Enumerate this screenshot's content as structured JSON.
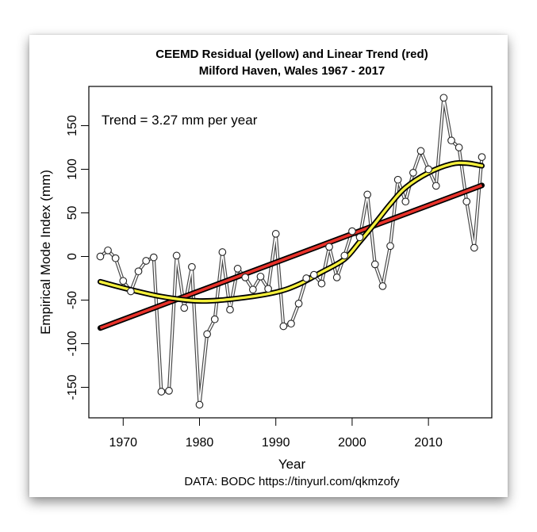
{
  "chart_data": {
    "type": "line",
    "title": "CEEMD Residual (yellow) and Linear Trend (red)",
    "subtitle": "Milford Haven, Wales 1967 - 2017",
    "xlabel": "Year",
    "ylabel": "Empirical Mode Index (mm)",
    "source_note": "DATA: BODC https://tinyurl.com/qkmzofy",
    "annotation": "Trend = 3.27 mm per year",
    "xlim": [
      1965.5,
      2018.3
    ],
    "ylim": [
      -185,
      195
    ],
    "x_ticks": [
      1970,
      1980,
      1990,
      2000,
      2010
    ],
    "x_tick_labels": [
      "1970",
      "1980",
      "1990",
      "2000",
      "2010"
    ],
    "y_ticks": [
      -150,
      -100,
      -50,
      0,
      50,
      100,
      150
    ],
    "y_tick_labels": [
      "-150",
      "-100",
      "-50",
      "0",
      "50",
      "100",
      "150"
    ],
    "grid": false,
    "series": [
      {
        "name": "Empirical Mode Index",
        "style": "open-circle-line",
        "color": "#555555",
        "x": [
          1967,
          1968,
          1969,
          1970,
          1971,
          1972,
          1973,
          1974,
          1975,
          1976,
          1977,
          1978,
          1979,
          1980,
          1981,
          1982,
          1983,
          1984,
          1985,
          1986,
          1987,
          1988,
          1989,
          1990,
          1991,
          1992,
          1993,
          1994,
          1995,
          1996,
          1997,
          1998,
          1999,
          2000,
          2001,
          2002,
          2003,
          2004,
          2005,
          2006,
          2007,
          2008,
          2009,
          2010,
          2011,
          2012,
          2013,
          2014,
          2015,
          2016,
          2017
        ],
        "values": [
          0,
          7,
          -2,
          -28,
          -40,
          -17,
          -5,
          -1,
          -155,
          -154,
          1,
          -59,
          -12,
          -170,
          -89,
          -72,
          5,
          -61,
          -14,
          -24,
          -38,
          -23,
          -37,
          26,
          -80,
          -77,
          -54,
          -25,
          -21,
          -31,
          11,
          -24,
          1,
          29,
          22,
          71,
          -9,
          -34,
          12,
          88,
          63,
          96,
          121,
          100,
          81,
          182,
          133,
          125,
          63,
          10,
          114
        ]
      },
      {
        "name": "CEEMD Residual",
        "style": "smooth-line",
        "color": "#f5f03c",
        "x": [
          1967,
          1970,
          1975,
          1980,
          1985,
          1990,
          1993,
          1996,
          1999,
          2001,
          2003,
          2005,
          2007,
          2010,
          2013,
          2015,
          2017
        ],
        "values": [
          -29,
          -36,
          -46,
          -51,
          -48,
          -41,
          -32,
          -18,
          -3,
          17,
          38,
          60,
          79,
          96,
          106,
          107,
          104
        ]
      },
      {
        "name": "Linear Trend",
        "style": "straight-line",
        "color": "#e8322a",
        "x": [
          1967,
          2017
        ],
        "values": [
          -82,
          81.5
        ]
      }
    ]
  }
}
